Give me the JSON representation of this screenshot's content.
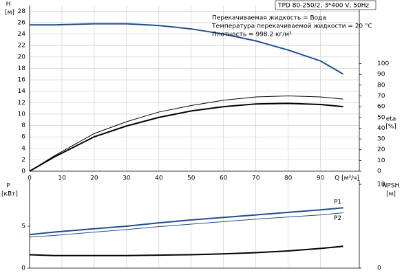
{
  "header": {
    "title": "TPD 80-250/2, 3*400 V, 50Hz",
    "info": [
      "Перекачиваемая жидкость = Вода",
      "Температура перекачиваемой жидкости = 20 °C",
      "Плотность = 998.2 кг/м³"
    ]
  },
  "chart_data": [
    {
      "type": "line",
      "ylabel": "H",
      "yunit": "[м]",
      "y2label": "eta",
      "y2unit": "[%]",
      "xlabel": "Q [м³/ч]",
      "xlim": [
        0,
        102
      ],
      "xticks": [
        0,
        10,
        20,
        30,
        40,
        50,
        60,
        70,
        80,
        90
      ],
      "ylim": [
        0,
        29
      ],
      "yticks": [
        0,
        2,
        4,
        6,
        8,
        10,
        12,
        14,
        16,
        18,
        20,
        22,
        24,
        26,
        28
      ],
      "y2lim": [
        0,
        154
      ],
      "y2ticks": [
        0,
        10,
        20,
        30,
        40,
        50,
        60,
        70,
        80,
        90,
        100
      ],
      "grid": "both",
      "x": [
        0,
        7.5,
        20,
        30,
        40,
        50,
        60,
        70,
        80,
        90,
        97
      ],
      "series": [
        {
          "color": "#1f4e8c",
          "line_width": 2,
          "values": [
            25.6,
            25.6,
            25.8,
            25.8,
            25.5,
            24.9,
            24,
            22.8,
            21.2,
            19.3,
            17
          ]
        },
        {
          "color": "#000000",
          "line_width": 1,
          "axis": "y2",
          "values": [
            0,
            14,
            35,
            46,
            55,
            61,
            66,
            69,
            70,
            69,
            67
          ]
        },
        {
          "color": "#000000",
          "line_width": 2,
          "axis": "y2",
          "values": [
            0,
            13,
            32,
            42,
            50,
            56,
            60,
            62.5,
            63,
            62,
            60
          ]
        }
      ]
    },
    {
      "type": "line",
      "ylabel": "P",
      "yunit": "[кВт]",
      "y2label": "NPSH",
      "y2unit": "[м]",
      "xlim": [
        0,
        102
      ],
      "xticks": [
        0,
        10,
        20,
        30,
        40,
        50,
        60,
        70,
        80,
        90
      ],
      "ylim": [
        0,
        10.5
      ],
      "yticks": [
        0,
        5
      ],
      "y2lim": [
        0,
        10.5
      ],
      "y2ticks": [
        0,
        10
      ],
      "grid": "x",
      "x": [
        0,
        7.5,
        20,
        30,
        40,
        50,
        60,
        70,
        80,
        90,
        97
      ],
      "series": [
        {
          "name": "P1",
          "color": "#1f4e8c",
          "line_width": 2,
          "values": [
            4.0,
            4.3,
            4.7,
            5.0,
            5.4,
            5.75,
            6.05,
            6.35,
            6.65,
            6.95,
            7.2
          ]
        },
        {
          "name": "P2",
          "color": "#1f4e8c",
          "line_width": 1,
          "values": [
            3.7,
            3.9,
            4.3,
            4.6,
            4.95,
            5.25,
            5.55,
            5.85,
            6.1,
            6.35,
            6.6
          ]
        },
        {
          "color": "#000000",
          "line_width": 2,
          "axis": "y2",
          "values": [
            1.6,
            1.5,
            1.5,
            1.5,
            1.55,
            1.6,
            1.7,
            1.85,
            2.05,
            2.35,
            2.6
          ]
        }
      ]
    }
  ]
}
